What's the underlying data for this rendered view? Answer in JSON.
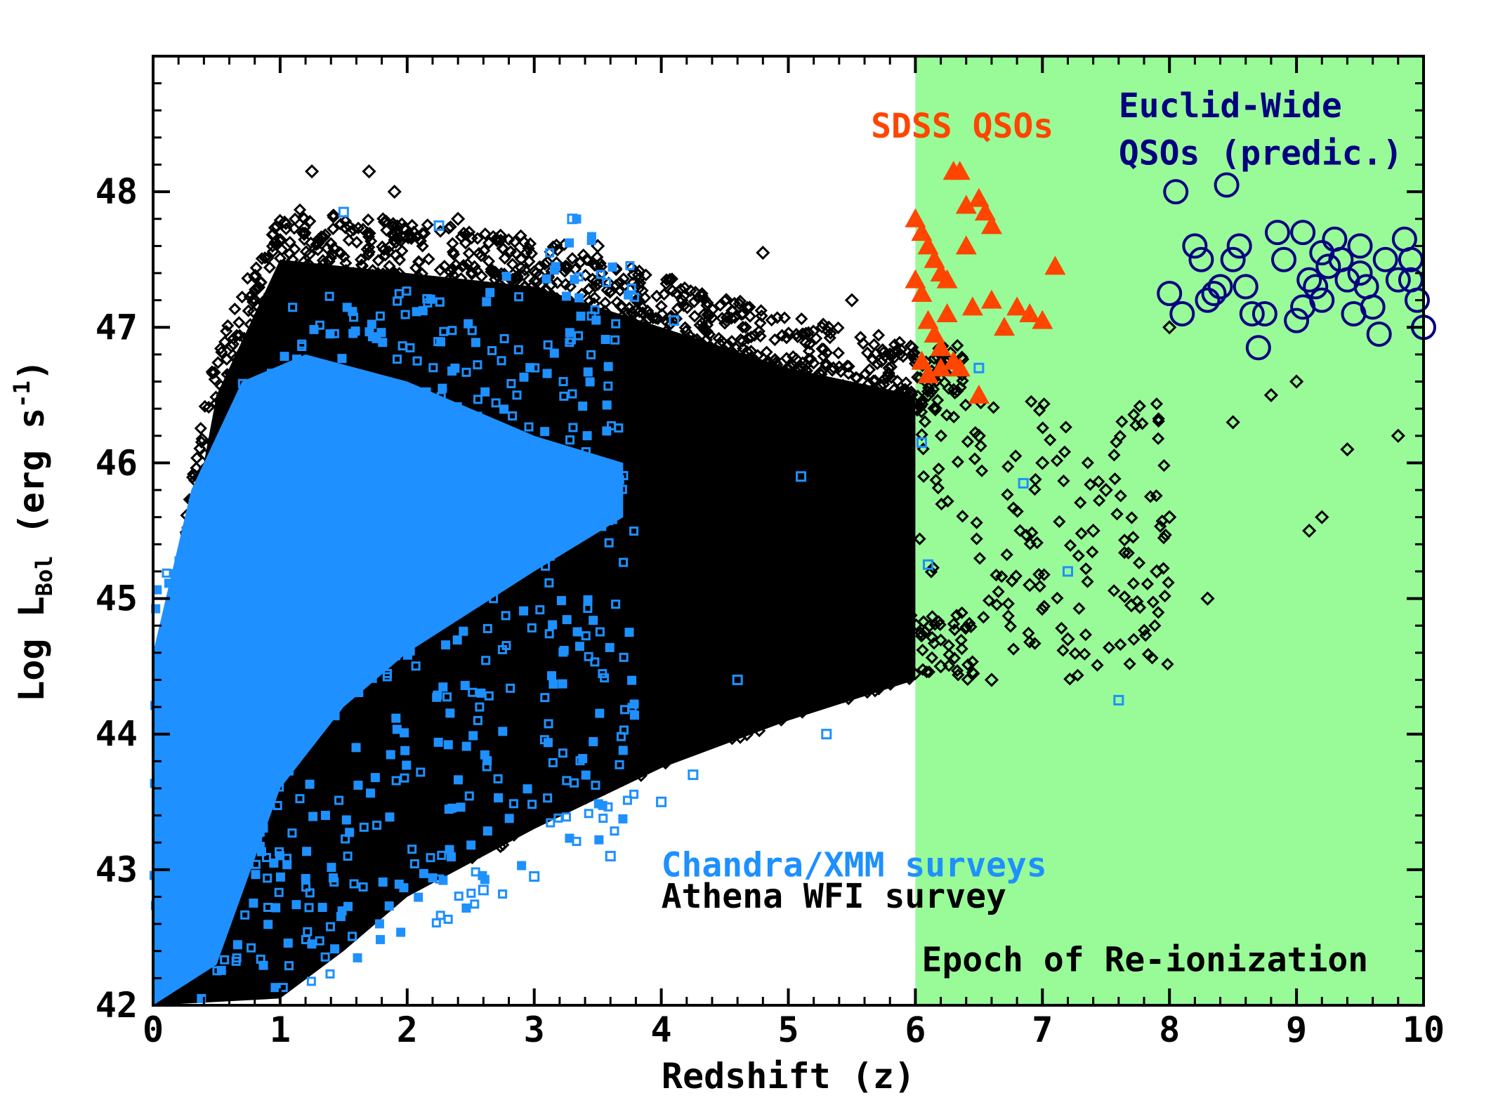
{
  "chart_data": {
    "type": "scatter",
    "title": "",
    "xlabel": "Redshift (z)",
    "ylabel": "Log L",
    "ylabel_sub": "Bol",
    "ylabel_units_pre": " (erg s",
    "ylabel_units_sup": "-1",
    "ylabel_units_post": ")",
    "xlim": [
      0,
      10
    ],
    "ylim": [
      42,
      49
    ],
    "xticks": [
      "0",
      "1",
      "2",
      "3",
      "4",
      "5",
      "6",
      "7",
      "8",
      "9",
      "10"
    ],
    "yticks": [
      "42",
      "43",
      "44",
      "45",
      "46",
      "47",
      "48"
    ],
    "shaded_region": {
      "x_from": 6,
      "x_to": 10,
      "color": "#98fb98",
      "label": "Epoch of Re-ionization"
    },
    "colors": {
      "athena": "#000000",
      "chandra": "#1e90ff",
      "sdss": "#ff4500",
      "euclid": "#000080"
    },
    "series": [
      {
        "name": "Athena WFI survey",
        "marker": "diamond",
        "color": "#000000",
        "count_approx": 60000,
        "envelope": {
          "z_range": [
            0,
            10
          ],
          "lower_edge": [
            [
              0,
              42.0
            ],
            [
              1,
              42.05
            ],
            [
              1.5,
              42.4
            ],
            [
              2,
              42.8
            ],
            [
              3,
              43.3
            ],
            [
              4,
              43.75
            ],
            [
              5,
              44.1
            ],
            [
              6,
              44.4
            ]
          ],
          "upper_edge": [
            [
              0.1,
              44.5
            ],
            [
              0.5,
              46.5
            ],
            [
              1,
              47.5
            ],
            [
              2,
              47.4
            ],
            [
              3,
              47.3
            ],
            [
              4,
              47.0
            ],
            [
              5,
              46.7
            ],
            [
              6,
              46.5
            ]
          ]
        },
        "points_sample": [
          [
            1.25,
            48.15
          ],
          [
            1.7,
            48.15
          ],
          [
            1.9,
            48.0
          ],
          [
            2.4,
            47.8
          ],
          [
            3.5,
            47.6
          ],
          [
            4.8,
            47.55
          ],
          [
            5.5,
            47.2
          ],
          [
            5.8,
            46.8
          ],
          [
            6.1,
            46.5
          ],
          [
            6.5,
            46.2
          ],
          [
            7.0,
            46.0
          ],
          [
            7.5,
            45.8
          ],
          [
            8.0,
            45.6
          ],
          [
            8.5,
            46.3
          ],
          [
            9.0,
            46.6
          ],
          [
            9.4,
            46.1
          ],
          [
            9.8,
            46.2
          ],
          [
            8.8,
            46.5
          ],
          [
            8.3,
            45.0
          ],
          [
            9.1,
            45.5
          ],
          [
            7.2,
            44.7
          ],
          [
            6.6,
            44.4
          ],
          [
            6.2,
            44.5
          ],
          [
            7.4,
            45.5
          ],
          [
            9.2,
            45.6
          ],
          [
            8.0,
            47.0
          ],
          [
            7.7,
            44.95
          ],
          [
            7.9,
            45.2
          ],
          [
            6.9,
            45.1
          ]
        ]
      },
      {
        "name": "Chandra/XMM surveys",
        "marker": "square",
        "color": "#1e90ff",
        "count_approx": 6000,
        "envelope": {
          "z_range": [
            0,
            3.8
          ],
          "lower_edge": [
            [
              0,
              42.0
            ],
            [
              1,
              42.1
            ],
            [
              1.5,
              42.2
            ],
            [
              2,
              42.5
            ],
            [
              3,
              42.9
            ],
            [
              3.7,
              43.3
            ]
          ],
          "upper_edge": [
            [
              0.3,
              45.5
            ],
            [
              0.7,
              46.6
            ],
            [
              1,
              47.2
            ],
            [
              2,
              47.3
            ],
            [
              3,
              47.4
            ],
            [
              3.3,
              47.8
            ]
          ]
        },
        "points_sample": [
          [
            1.5,
            47.85
          ],
          [
            3.3,
            47.8
          ],
          [
            2.25,
            47.75
          ],
          [
            4.1,
            47.05
          ],
          [
            4.25,
            43.7
          ],
          [
            4.0,
            43.5
          ],
          [
            5.3,
            44.0
          ],
          [
            7.6,
            44.25
          ],
          [
            7.2,
            45.2
          ],
          [
            6.5,
            46.7
          ],
          [
            6.05,
            46.15
          ],
          [
            6.1,
            45.25
          ],
          [
            6.85,
            45.85
          ],
          [
            4.6,
            44.4
          ],
          [
            5.1,
            45.9
          ],
          [
            3.6,
            43.1
          ],
          [
            3.0,
            42.95
          ],
          [
            2.6,
            42.85
          ]
        ]
      },
      {
        "name": "SDSS QSOs",
        "marker": "triangle",
        "color": "#ff4500",
        "points": [
          [
            6.0,
            47.8
          ],
          [
            6.05,
            47.7
          ],
          [
            6.1,
            47.6
          ],
          [
            6.15,
            47.5
          ],
          [
            6.2,
            47.4
          ],
          [
            6.25,
            47.35
          ],
          [
            6.3,
            48.15
          ],
          [
            6.35,
            48.15
          ],
          [
            6.4,
            47.9
          ],
          [
            6.5,
            47.95
          ],
          [
            6.55,
            47.85
          ],
          [
            6.6,
            47.75
          ],
          [
            6.0,
            47.35
          ],
          [
            6.05,
            47.25
          ],
          [
            6.1,
            47.05
          ],
          [
            6.15,
            46.95
          ],
          [
            6.2,
            46.85
          ],
          [
            6.3,
            46.75
          ],
          [
            6.35,
            46.7
          ],
          [
            6.45,
            47.15
          ],
          [
            6.6,
            47.2
          ],
          [
            6.7,
            47.0
          ],
          [
            6.8,
            47.15
          ],
          [
            6.9,
            47.1
          ],
          [
            7.0,
            47.05
          ],
          [
            7.1,
            47.45
          ],
          [
            6.05,
            46.75
          ],
          [
            6.1,
            46.65
          ],
          [
            6.25,
            47.1
          ],
          [
            6.5,
            46.5
          ],
          [
            6.4,
            47.6
          ],
          [
            6.2,
            46.7
          ]
        ]
      },
      {
        "name": "Euclid-Wide QSOs (predic.)",
        "marker": "circle",
        "color": "#000080",
        "points": [
          [
            8.05,
            48.0
          ],
          [
            8.45,
            48.05
          ],
          [
            8.2,
            47.6
          ],
          [
            8.25,
            47.5
          ],
          [
            8.0,
            47.25
          ],
          [
            8.1,
            47.1
          ],
          [
            8.3,
            47.2
          ],
          [
            8.4,
            47.3
          ],
          [
            8.5,
            47.5
          ],
          [
            8.55,
            47.6
          ],
          [
            8.6,
            47.3
          ],
          [
            8.65,
            47.1
          ],
          [
            8.7,
            46.85
          ],
          [
            8.75,
            47.1
          ],
          [
            8.85,
            47.7
          ],
          [
            8.9,
            47.5
          ],
          [
            9.0,
            47.05
          ],
          [
            9.05,
            47.15
          ],
          [
            9.1,
            47.35
          ],
          [
            9.15,
            47.3
          ],
          [
            9.2,
            47.2
          ],
          [
            9.25,
            47.45
          ],
          [
            9.3,
            47.65
          ],
          [
            9.35,
            47.5
          ],
          [
            9.4,
            47.35
          ],
          [
            9.45,
            47.1
          ],
          [
            9.5,
            47.6
          ],
          [
            9.55,
            47.3
          ],
          [
            9.6,
            47.15
          ],
          [
            9.65,
            46.95
          ],
          [
            9.7,
            47.5
          ],
          [
            9.85,
            47.65
          ],
          [
            9.9,
            47.5
          ],
          [
            9.95,
            47.2
          ],
          [
            10.0,
            47.0
          ],
          [
            9.05,
            47.7
          ],
          [
            9.2,
            47.55
          ],
          [
            8.35,
            47.25
          ],
          [
            9.8,
            47.35
          ],
          [
            9.5,
            47.4
          ],
          [
            9.9,
            47.35
          ]
        ]
      }
    ],
    "annotations": [
      "SDSS QSOs",
      "Euclid-Wide",
      "QSOs (predic.)",
      "Chandra/XMM surveys",
      "Athena WFI survey"
    ]
  }
}
